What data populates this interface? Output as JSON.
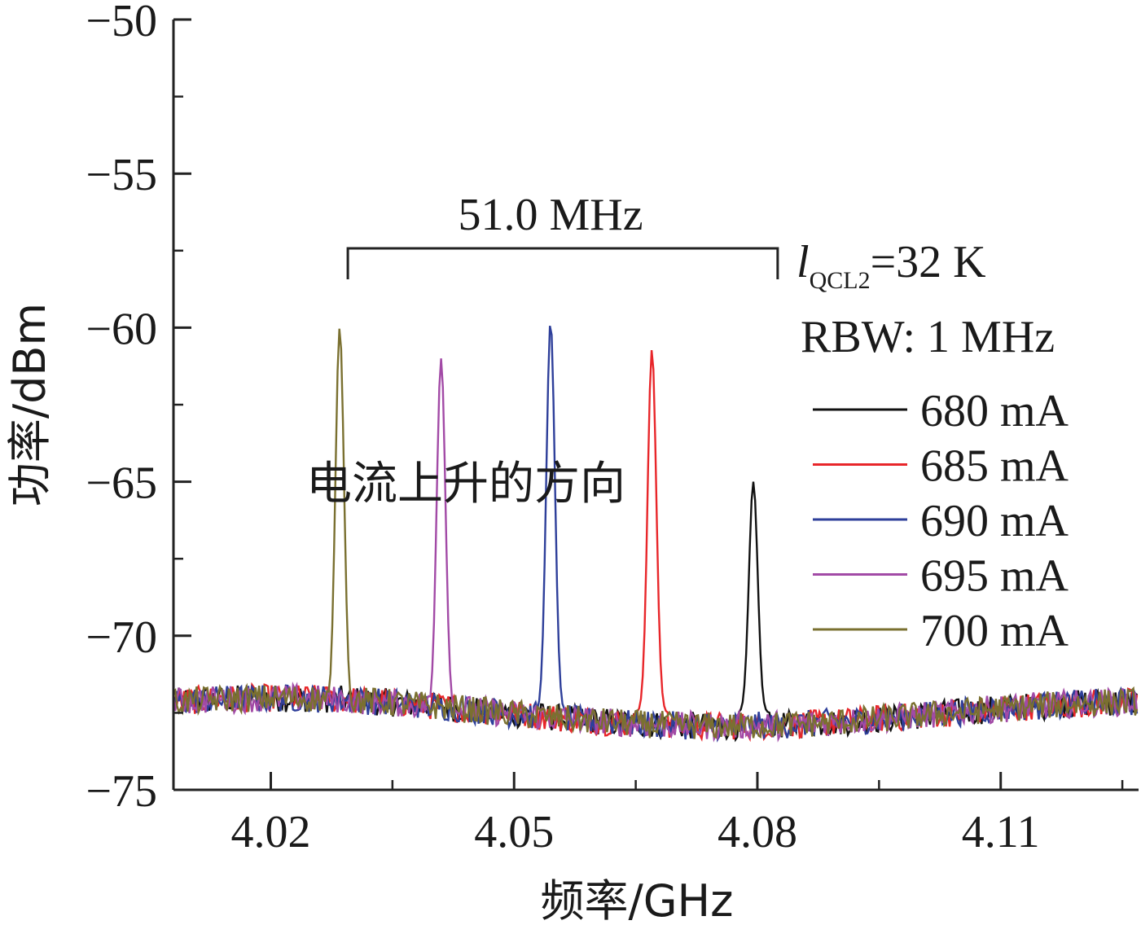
{
  "chart_data": {
    "type": "line",
    "xlabel": "频率/GHz",
    "ylabel": "功率/dBm",
    "xlim": [
      4.008,
      4.127
    ],
    "ylim": [
      -75,
      -50
    ],
    "xticks": [
      4.02,
      4.05,
      4.08,
      4.11
    ],
    "xtick_labels": [
      "4.02",
      "4.05",
      "4.08",
      "4.11"
    ],
    "yticks": [
      -50,
      -55,
      -60,
      -65,
      -70,
      -75
    ],
    "ytick_labels": [
      "−50",
      "−55",
      "−60",
      "−65",
      "−70",
      "−75"
    ],
    "grid": false,
    "legend_position": "right",
    "noise_floor_dBm": -72.5,
    "series": [
      {
        "name": "680 mA",
        "color": "#111111",
        "peak_freq_GHz": 4.0795,
        "peak_dBm": -65.0
      },
      {
        "name": "685 mA",
        "color": "#e8262a",
        "peak_freq_GHz": 4.067,
        "peak_dBm": -60.7
      },
      {
        "name": "690 mA",
        "color": "#2e3f9a",
        "peak_freq_GHz": 4.0545,
        "peak_dBm": -59.8
      },
      {
        "name": "695 mA",
        "color": "#a24aa6",
        "peak_freq_GHz": 4.041,
        "peak_dBm": -61.0
      },
      {
        "name": "700 mA",
        "color": "#7a7030",
        "peak_freq_GHz": 4.0285,
        "peak_dBm": -60.0
      }
    ],
    "annotations": {
      "bracket_label": "51.0 MHz",
      "bracket_from_GHz": 4.0295,
      "bracket_to_GHz": 4.0825,
      "condition_prefix": "l",
      "condition_subscript": "QCL2",
      "condition_value": "=32 K",
      "rbw": "RBW: 1 MHz",
      "direction_note": "电流上升的方向"
    }
  }
}
